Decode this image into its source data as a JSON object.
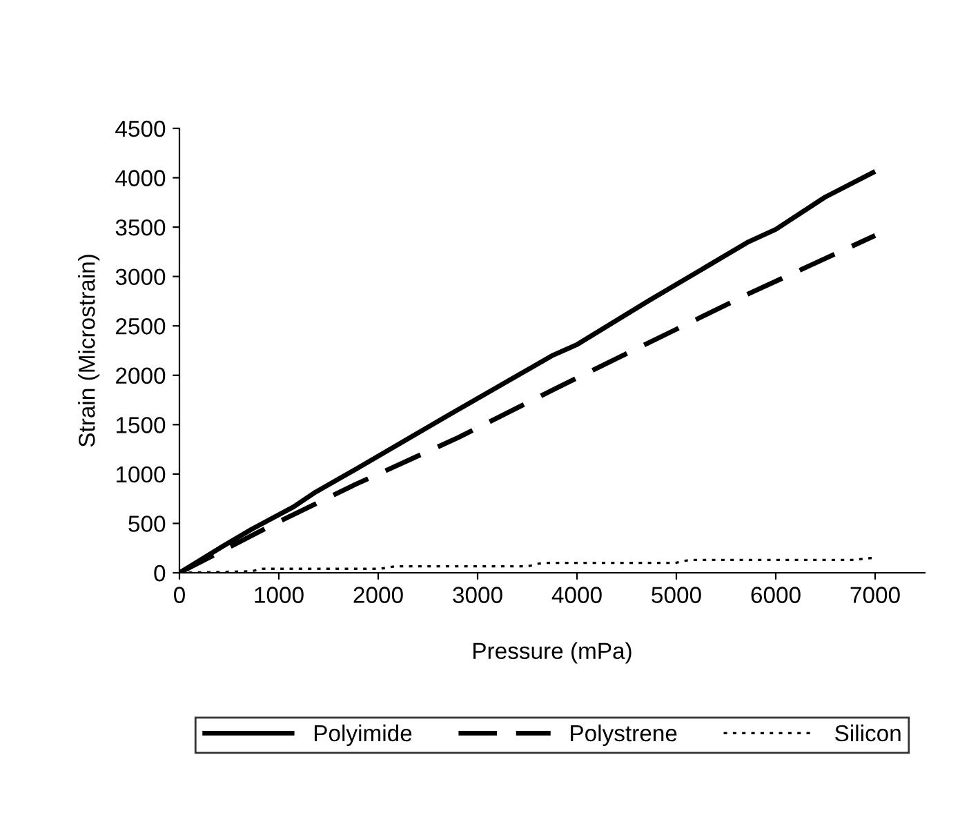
{
  "chart_data": {
    "type": "line",
    "xlabel": "Pressure (mPa)",
    "ylabel": "Strain (Microstrain)",
    "xlim": [
      0,
      7500
    ],
    "xticks": [
      0,
      1000,
      2000,
      3000,
      4000,
      5000,
      6000,
      7000
    ],
    "ylim": [
      0,
      4500
    ],
    "yticks": [
      0,
      500,
      1000,
      1500,
      2000,
      2500,
      3000,
      3500,
      4000,
      4500
    ],
    "grid": false,
    "legend": "bottom",
    "marker": "none",
    "series": [
      {
        "name": "Polyimide",
        "color": "#000000",
        "line_style": "solid",
        "x": [
          0,
          431,
          728,
          1149,
          1371,
          1767,
          2708,
          3748,
          3995,
          4713,
          5010,
          5727,
          6000,
          6495,
          7000
        ],
        "values": [
          0,
          266,
          442,
          668,
          818,
          1044,
          1596,
          2198,
          2308,
          2750,
          2926,
          3352,
          3477,
          3803,
          4064
        ]
      },
      {
        "name": "Polystrene",
        "color": "#000000",
        "line_style": "dashed",
        "x": [
          0,
          950,
          1767,
          2807,
          3797,
          5727,
          7000
        ],
        "values": [
          0,
          492,
          893,
          1370,
          1872,
          2825,
          3415
        ]
      },
      {
        "name": "Silicon",
        "color": "#000000",
        "line_style": "dotted",
        "x": [
          0,
          728,
          827,
          2015,
          2163,
          3500,
          3649,
          4985,
          5134,
          6767,
          6965
        ],
        "values": [
          0,
          15,
          40,
          40,
          65,
          65,
          100,
          100,
          130,
          130,
          150
        ]
      }
    ]
  }
}
